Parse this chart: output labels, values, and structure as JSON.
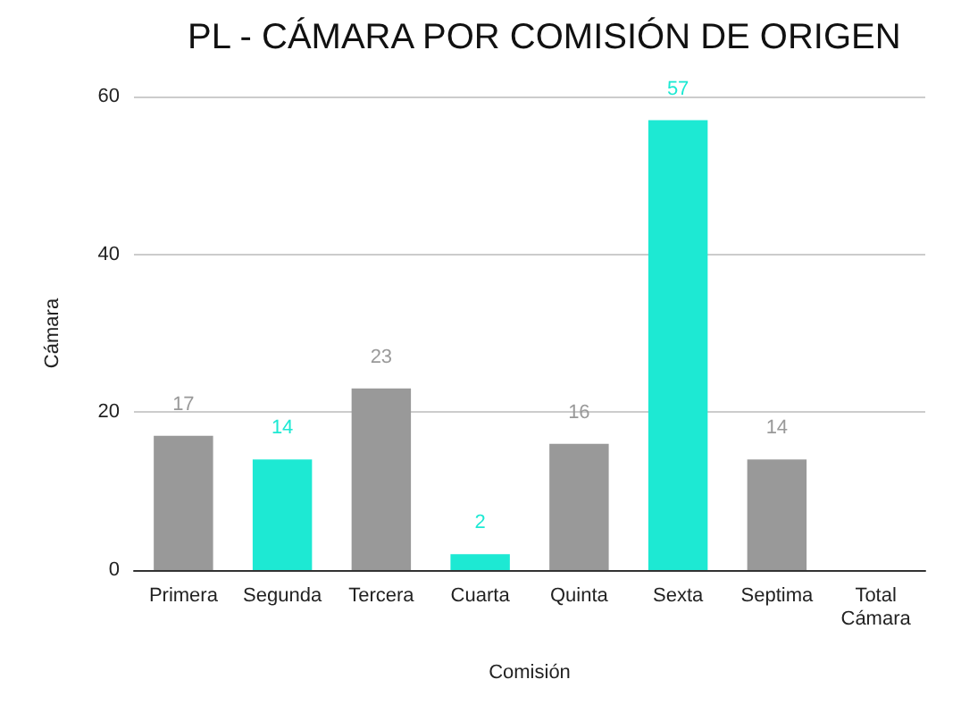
{
  "chart_data": {
    "type": "bar",
    "title": "PL - CÁMARA POR COMISIÓN DE ORIGEN",
    "xlabel": "Comisión",
    "ylabel": "Cámara",
    "categories": [
      "Primera",
      "Segunda",
      "Tercera",
      "Cuarta",
      "Quinta",
      "Sexta",
      "Septima",
      "Total\nCámara"
    ],
    "values": [
      17,
      14,
      23,
      2,
      16,
      57,
      14,
      null
    ],
    "colors": [
      "#999999",
      "#1de9d3",
      "#999999",
      "#1de9d3",
      "#999999",
      "#1de9d3",
      "#999999",
      "#999999"
    ],
    "ylim": [
      0,
      60
    ],
    "yticks": [
      0,
      20,
      40,
      60
    ],
    "grid": "y",
    "data_labels": true
  }
}
